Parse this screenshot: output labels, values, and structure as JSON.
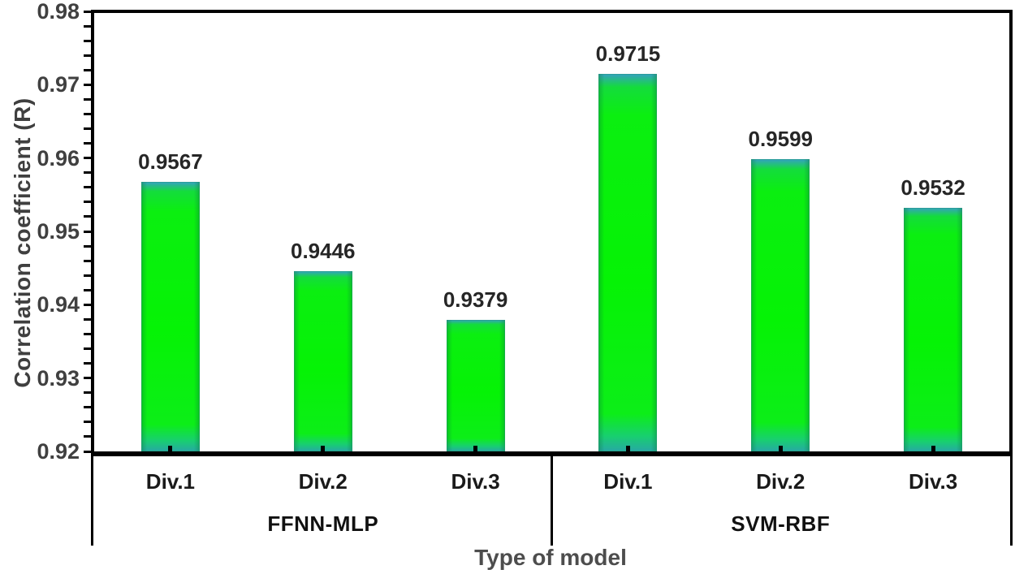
{
  "chart_data": {
    "type": "bar",
    "title": "",
    "xlabel": "Type of model",
    "ylabel": "Correlation coefficient (R)",
    "ylim": [
      0.92,
      0.98
    ],
    "ytick_step": 0.01,
    "yminor_step": 0.002,
    "ytick_labels": [
      "0.98",
      "0.97",
      "0.96",
      "0.95",
      "0.94",
      "0.93",
      "0.92"
    ],
    "grid": false,
    "legend_position": "none",
    "groups": [
      {
        "name": "FFNN-MLP",
        "categories": [
          "Div.1",
          "Div.2",
          "Div.3"
        ],
        "values": [
          0.9567,
          0.9446,
          0.9379
        ],
        "value_labels": [
          "0.9567",
          "0.9446",
          "0.9379"
        ]
      },
      {
        "name": "SVM-RBF",
        "categories": [
          "Div.1",
          "Div.2",
          "Div.3"
        ],
        "values": [
          0.9715,
          0.9599,
          0.9532
        ],
        "value_labels": [
          "0.9715",
          "0.9599",
          "0.9532"
        ]
      }
    ],
    "colors": {
      "bar_fill_center": "#05f305",
      "bar_fill_edge": "#27a8a4",
      "axis_line": "#000000",
      "tick_label": "#404040",
      "data_label": "#262626",
      "axis_title": "#3f3f3f",
      "xaxis_title": "#4d4d4d"
    }
  }
}
